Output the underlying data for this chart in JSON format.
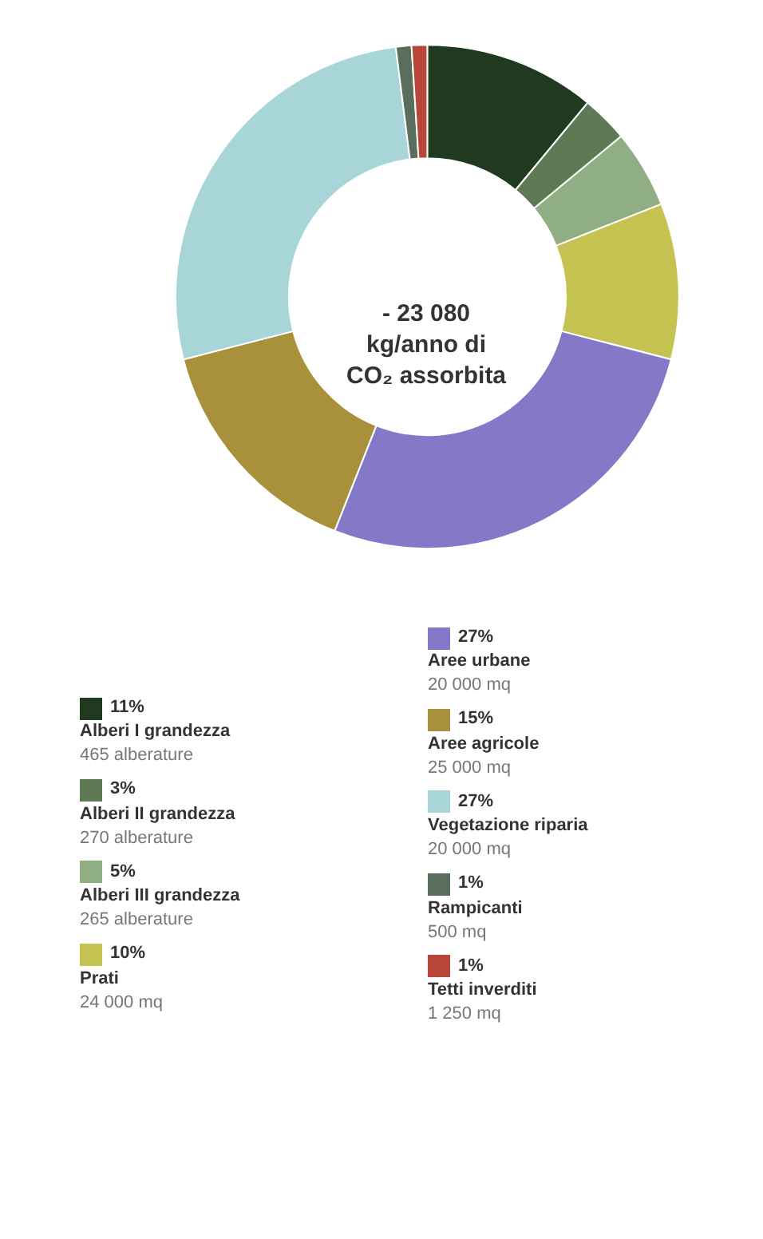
{
  "chart_data": {
    "type": "donut",
    "categories": [
      "Alberi I grandezza\n465 alberature",
      "Alberi II grandezza\n270 alberature",
      "Alberi III grandezza\n265 alberature",
      "Prati\n24 000 mq",
      "Aree urbane\n20 000 mq",
      "Aree agricole\n25 000 mq",
      "Vegetazione riparia\n20 000 mq",
      "Rampicanti\n500 mq",
      "Tetti inverditi\n1 250 mq"
    ],
    "values": [
      11,
      3,
      5,
      10,
      27,
      15,
      27,
      1,
      1
    ],
    "colors": [
      "#1f3a1f",
      "#5e7a55",
      "#8fae84",
      "#c4c250",
      "#8478c8",
      "#a8913a",
      "#a8d6d8",
      "#5a6e5e",
      "#b8473a"
    ],
    "value_labels": [
      "11%",
      "3%",
      "5%",
      "10%",
      "27%",
      "15%",
      "27%",
      "1%",
      "1%"
    ],
    "annotations": [
      "- 23 080 kg/anno di CO₂ assorbita"
    ],
    "legend": "bottom"
  }
}
